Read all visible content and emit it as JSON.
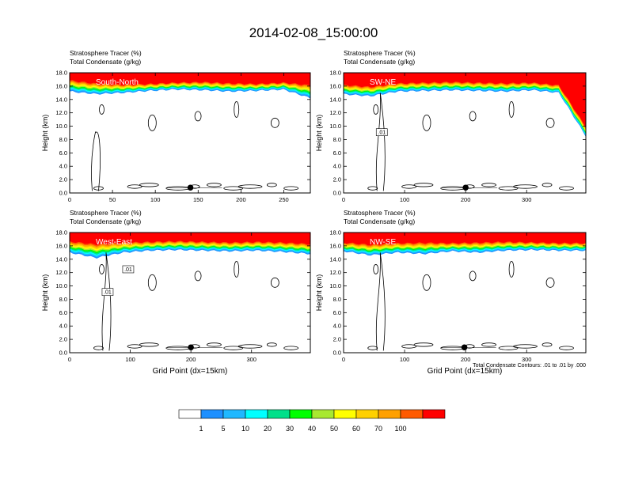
{
  "title": "2014-02-08_15:00:00",
  "contour_note": "Total Condensate Contours: .01 to .01 by .000",
  "colorbar": {
    "levels": [
      "1",
      "5",
      "10",
      "20",
      "30",
      "40",
      "50",
      "60",
      "70",
      "100"
    ],
    "colors": [
      "#ffffff",
      "#1e90ff",
      "#1fb8ff",
      "#00ffff",
      "#00e08a",
      "#00ff00",
      "#a8e830",
      "#ffff00",
      "#ffd000",
      "#ffa000",
      "#ff5a00",
      "#ff0000"
    ]
  },
  "chart_data": [
    {
      "type": "contour",
      "panel_label": "South-North",
      "header": [
        "Stratosphere Tracer   (%)",
        "Total Condensate   (g/kg)"
      ],
      "xlabel": "",
      "ylabel": "Height (km)",
      "xlim": [
        0,
        281
      ],
      "ylim": [
        0,
        18
      ],
      "xticks": [
        0,
        50,
        100,
        150,
        200,
        250
      ],
      "yticks": [
        "0.0",
        "2.0",
        "4.0",
        "6.0",
        "8.0",
        "10.0",
        "12.0",
        "14.0",
        "16.0",
        "18.0"
      ],
      "tracer_100_top_km": [
        17.0,
        16.5,
        16.3,
        16.4,
        16.6,
        16.7,
        16.5,
        16.4,
        16.6,
        16.3
      ],
      "tropopause_km": [
        15.2,
        14.8,
        15.0,
        15.3,
        15.5,
        15.4,
        15.2,
        15.3,
        15.5,
        14.2
      ],
      "marker": {
        "x": 141,
        "y": 0.8
      },
      "contour_labels": []
    },
    {
      "type": "contour",
      "panel_label": "SW-NE",
      "header": [
        "Stratosphere Tracer   (%)",
        "Total Condensate   (g/kg)"
      ],
      "xlabel": "",
      "ylabel": "Height (km)",
      "xlim": [
        0,
        397
      ],
      "ylim": [
        0,
        18
      ],
      "xticks": [
        0,
        100,
        200,
        300
      ],
      "yticks": [
        "0.0",
        "2.0",
        "4.0",
        "6.0",
        "8.0",
        "10.0",
        "12.0",
        "14.0",
        "16.0",
        "18.0"
      ],
      "tracer_100_top_km": [
        16.3,
        16.0,
        16.5,
        16.6,
        16.7,
        16.6,
        16.5,
        16.6,
        16.2,
        10.0
      ],
      "tropopause_km": [
        14.8,
        14.5,
        15.2,
        15.3,
        15.4,
        15.3,
        15.2,
        15.4,
        15.0,
        8.5
      ],
      "marker": {
        "x": 200,
        "y": 0.8
      },
      "contour_labels": [
        ".01"
      ]
    },
    {
      "type": "contour",
      "panel_label": "West-East",
      "header": [
        "Stratosphere Tracer   (%)",
        "Total Condensate   (g/kg)"
      ],
      "xlabel": "Grid Point (dx=15km)",
      "ylabel": "Height (km)",
      "xlim": [
        0,
        397
      ],
      "ylim": [
        0,
        18
      ],
      "xticks": [
        0,
        100,
        200,
        300
      ],
      "yticks": [
        "0.0",
        "2.0",
        "4.0",
        "6.0",
        "8.0",
        "10.0",
        "12.0",
        "14.0",
        "16.0",
        "18.0"
      ],
      "tracer_100_top_km": [
        16.8,
        16.4,
        16.6,
        16.7,
        16.8,
        16.7,
        16.6,
        16.7,
        16.6,
        16.4
      ],
      "tropopause_km": [
        15.0,
        14.2,
        15.0,
        15.3,
        15.4,
        15.3,
        15.2,
        15.3,
        15.1,
        14.8
      ],
      "marker": {
        "x": 200,
        "y": 0.8
      },
      "contour_labels": [
        ".01",
        ".01"
      ]
    },
    {
      "type": "contour",
      "panel_label": "NW-SE",
      "header": [
        "Stratosphere Tracer   (%)",
        "Total Condensate   (g/kg)"
      ],
      "xlabel": "Grid Point (dx=15km)",
      "ylabel": "Height (km)",
      "xlim": [
        0,
        397
      ],
      "ylim": [
        0,
        18
      ],
      "xticks": [
        0,
        100,
        200,
        300
      ],
      "yticks": [
        "0.0",
        "2.0",
        "4.0",
        "6.0",
        "8.0",
        "10.0",
        "12.0",
        "14.0",
        "16.0",
        "18.0"
      ],
      "tracer_100_top_km": [
        16.6,
        16.3,
        16.5,
        16.6,
        16.5,
        16.6,
        16.7,
        16.6,
        16.5,
        16.5
      ],
      "tropopause_km": [
        15.2,
        14.6,
        15.0,
        14.8,
        15.2,
        15.0,
        15.3,
        15.4,
        15.3,
        15.3
      ],
      "marker": {
        "x": 198,
        "y": 0.8
      },
      "contour_labels": []
    }
  ]
}
